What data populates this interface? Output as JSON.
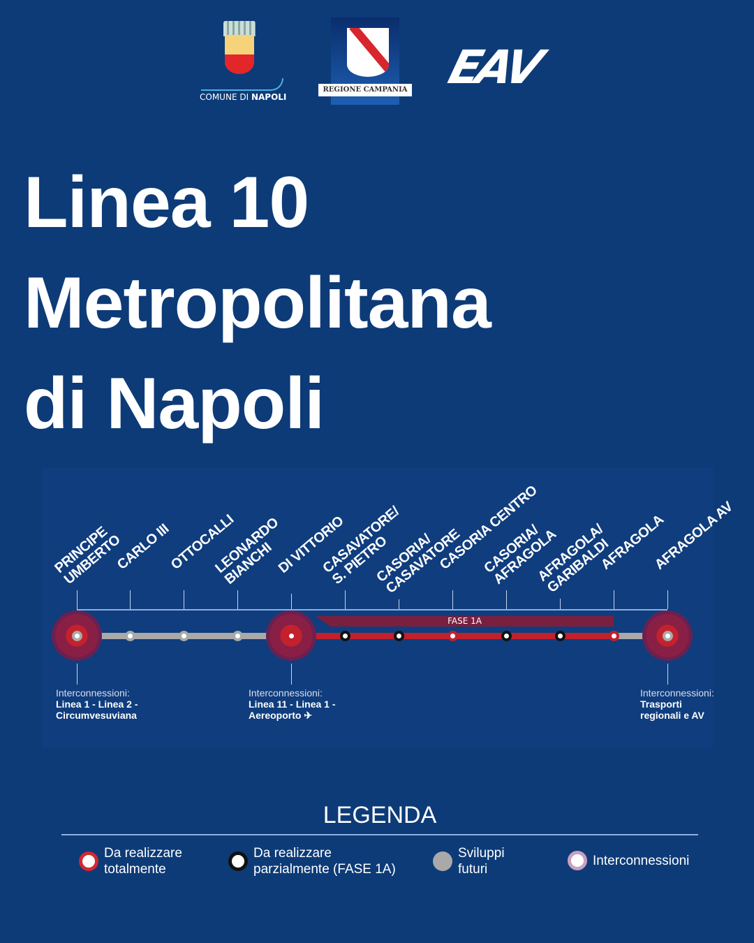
{
  "logos": {
    "comune": "COMUNE DI NAPOLI",
    "comune_bold": "NAPOLI",
    "comune_plain": "COMUNE DI ",
    "regione": "REGIONE CAMPANIA",
    "eav": "EAV"
  },
  "title": {
    "line1": "Linea 10",
    "line2": "Metropolitana",
    "line3": "di Napoli"
  },
  "map": {
    "fase_label": "FASE 1A",
    "stations": [
      {
        "name": "PRINCIPE\nUMBERTO",
        "type": "interconnection-gray"
      },
      {
        "name": "CARLO III",
        "type": "future"
      },
      {
        "name": "OTTOCALLI",
        "type": "future"
      },
      {
        "name": "LEONARDO\nBIANCHI",
        "type": "future"
      },
      {
        "name": "DI VITTORIO",
        "type": "interconnection-red"
      },
      {
        "name": "CASAVATORE/\nS. PIETRO",
        "type": "partial"
      },
      {
        "name": "CASORIA/\nCASAVATORE",
        "type": "partial"
      },
      {
        "name": "CASORIA CENTRO",
        "type": "total"
      },
      {
        "name": "CASORIA/\nAFRAGOLA",
        "type": "partial"
      },
      {
        "name": "AFRAGOLA/\nGARIBALDI",
        "type": "partial"
      },
      {
        "name": "AFRAGOLA",
        "type": "total"
      },
      {
        "name": "AFRAGOLA AV",
        "type": "interconnection-gray"
      }
    ],
    "interconnections": [
      {
        "heading": "Interconnessioni:",
        "line1": "Linea 1 - Linea 2 -",
        "line2": "Circumvesuviana"
      },
      {
        "heading": "Interconnessioni:",
        "line1": "Linea 11 - Linea 1 -",
        "line2": "Aereoporto ✈"
      },
      {
        "heading": "Interconnessioni:",
        "line1": "Trasporti",
        "line2": "regionali e AV"
      }
    ],
    "colors": {
      "red": "#c3202b",
      "gray": "#a9a9a9",
      "black": "#111111"
    }
  },
  "legend": {
    "title": "LEGENDA",
    "items": [
      {
        "label1": "Da realizzare",
        "label2": "totalmente"
      },
      {
        "label1": "Da realizzare",
        "label2": "parzialmente (FASE 1A)"
      },
      {
        "label1": "Sviluppi",
        "label2": "futuri"
      },
      {
        "label1": "Interconnessioni",
        "label2": ""
      }
    ]
  }
}
